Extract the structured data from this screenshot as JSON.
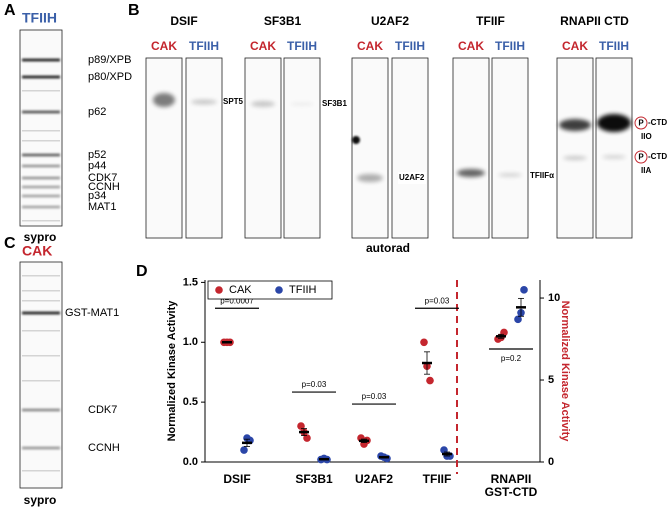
{
  "figure": {
    "panel_a": {
      "letter": "A",
      "title": "TFIIH",
      "bands": [
        "p89/XPB",
        "p80/XPD",
        "p62",
        "p52",
        "p44",
        "CDK7",
        "CCNH",
        "p34",
        "MAT1"
      ],
      "stain": "sypro"
    },
    "panel_b": {
      "letter": "B",
      "caption": "autorad",
      "groups": [
        {
          "title": "DSIF",
          "lanes": [
            "CAK",
            "TFIIH"
          ],
          "band_label": "SPT5"
        },
        {
          "title": "SF3B1",
          "lanes": [
            "CAK",
            "TFIIH"
          ],
          "band_label": "SF3B1"
        },
        {
          "title": "U2AF2",
          "lanes": [
            "CAK",
            "TFIIH"
          ],
          "band_label": "U2AF2"
        },
        {
          "title": "TFIIF",
          "lanes": [
            "CAK",
            "TFIIH"
          ],
          "band_label": "TFIIFα"
        },
        {
          "title": "RNAPII CTD",
          "lanes": [
            "CAK",
            "TFIIH"
          ],
          "band_labels": [
            {
              "phospho": "P",
              "name": "-CTD",
              "form": "IIO"
            },
            {
              "phospho": "P",
              "name": "-CTD",
              "form": "IIA"
            }
          ]
        }
      ]
    },
    "panel_c": {
      "letter": "C",
      "title": "CAK",
      "bands": [
        "GST-MAT1",
        "CDK7",
        "CCNH"
      ],
      "stain": "sypro"
    },
    "panel_d": {
      "letter": "D"
    }
  },
  "chart_data": {
    "type": "scatter",
    "categories": [
      "DSIF",
      "SF3B1",
      "U2AF2",
      "TFIIF",
      "RNAPII\nGST-CTD"
    ],
    "category_axis": [
      "y",
      "y",
      "y",
      "y",
      "y2"
    ],
    "series": [
      {
        "name": "CAK",
        "color": "#c4262e",
        "values": [
          [
            1,
            1,
            1
          ],
          [
            0.3,
            0.25,
            0.2
          ],
          [
            0.2,
            0.15,
            0.18
          ],
          [
            1.0,
            0.8,
            0.68
          ],
          [
            7.5,
            7.6,
            7.9
          ]
        ]
      },
      {
        "name": "TFIIH",
        "color": "#2b46a8",
        "values": [
          [
            0.1,
            0.2,
            0.18
          ],
          [
            0.02,
            0.03,
            0.02
          ],
          [
            0.05,
            0.04,
            0.03
          ],
          [
            0.1,
            0.05,
            0.05
          ],
          [
            8.7,
            9.1,
            10.5
          ]
        ]
      }
    ],
    "p_values": [
      "p=0.0007",
      "p=0.03",
      "p=0.03",
      "p=0.03",
      "p=0.2"
    ],
    "ylabel": "Normalized  Kinase  Activity",
    "y2label": "Normalized  Kinase  Activity",
    "ylim": [
      0,
      1.52
    ],
    "yticks": [
      {
        "value": 0,
        "label": "0.0"
      },
      0.5,
      {
        "value": 1,
        "label": "1.0"
      },
      1.5
    ],
    "y2lim": [
      0,
      11.1
    ],
    "y2ticks": [
      0,
      5,
      10
    ],
    "legend": "upper left"
  }
}
